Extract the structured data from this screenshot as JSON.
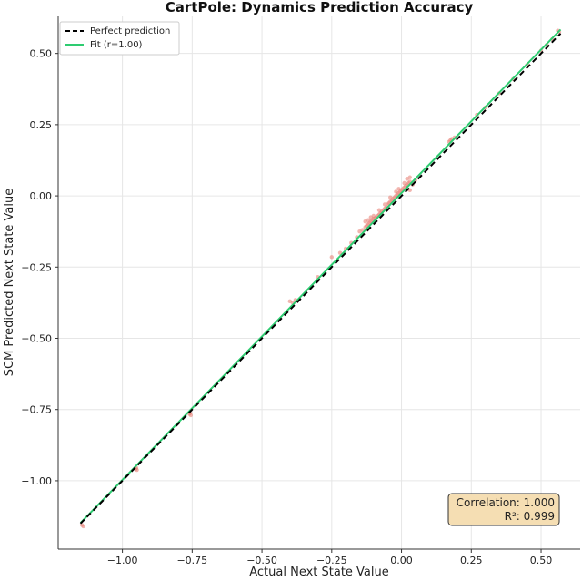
{
  "chart_data": {
    "type": "scatter",
    "title": "CartPole: Dynamics Prediction Accuracy",
    "xlabel": "Actual Next State Value",
    "ylabel": "SCM Predicted Next State Value",
    "xlim": [
      -1.23,
      0.64
    ],
    "ylim": [
      -1.24,
      0.63
    ],
    "xticks": [
      -1.0,
      -0.75,
      -0.5,
      -0.25,
      0.0,
      0.25,
      0.5
    ],
    "yticks": [
      -1.0,
      -0.75,
      -0.5,
      -0.25,
      0.0,
      0.25,
      0.5
    ],
    "tick_labels": [
      "−1.00",
      "−0.75",
      "−0.50",
      "−0.25",
      "0.00",
      "0.25",
      "0.50"
    ],
    "grid": true,
    "legend": {
      "position": "top-left",
      "entries": [
        {
          "label": "Perfect prediction",
          "style": "dashed",
          "color": "#000000"
        },
        {
          "label": "Fit (r=1.00)",
          "style": "solid",
          "color": "#2ecc71"
        }
      ]
    },
    "stats_box": {
      "position": "bottom-right",
      "line1": "Correlation: 1.000",
      "line2": "R²: 0.999"
    },
    "perfect_line": {
      "x": [
        -1.15,
        0.57
      ],
      "y": [
        -1.15,
        0.57
      ]
    },
    "fit_line": {
      "x": [
        -1.15,
        0.57
      ],
      "y": [
        -1.148,
        0.584
      ]
    },
    "point_color": "#e8847a",
    "points": [
      [
        -1.14,
        -1.16
      ],
      [
        -1.145,
        -1.155
      ],
      [
        -0.95,
        -0.955
      ],
      [
        -0.948,
        -0.962
      ],
      [
        -0.952,
        -0.958
      ],
      [
        -0.76,
        -0.765
      ],
      [
        -0.755,
        -0.77
      ],
      [
        -0.758,
        -0.762
      ],
      [
        -0.4,
        -0.37
      ],
      [
        -0.39,
        -0.375
      ],
      [
        -0.38,
        -0.365
      ],
      [
        -0.3,
        -0.285
      ],
      [
        -0.25,
        -0.215
      ],
      [
        -0.22,
        -0.2
      ],
      [
        -0.2,
        -0.185
      ],
      [
        -0.18,
        -0.165
      ],
      [
        -0.16,
        -0.145
      ],
      [
        -0.15,
        -0.125
      ],
      [
        -0.14,
        -0.12
      ],
      [
        -0.13,
        -0.11
      ],
      [
        -0.125,
        -0.105
      ],
      [
        -0.12,
        -0.1
      ],
      [
        -0.115,
        -0.095
      ],
      [
        -0.11,
        -0.09
      ],
      [
        -0.105,
        -0.085
      ],
      [
        -0.1,
        -0.08
      ],
      [
        -0.095,
        -0.078
      ],
      [
        -0.09,
        -0.075
      ],
      [
        -0.085,
        -0.07
      ],
      [
        -0.08,
        -0.065
      ],
      [
        -0.075,
        -0.06
      ],
      [
        -0.07,
        -0.055
      ],
      [
        -0.065,
        -0.05
      ],
      [
        -0.06,
        -0.045
      ],
      [
        -0.055,
        -0.04
      ],
      [
        -0.05,
        -0.03
      ],
      [
        -0.045,
        -0.025
      ],
      [
        -0.04,
        -0.02
      ],
      [
        -0.035,
        -0.015
      ],
      [
        -0.03,
        -0.01
      ],
      [
        -0.025,
        -0.005
      ],
      [
        -0.02,
        0.0
      ],
      [
        -0.015,
        0.005
      ],
      [
        -0.01,
        0.01
      ],
      [
        -0.005,
        0.015
      ],
      [
        0.0,
        0.02
      ],
      [
        0.005,
        0.025
      ],
      [
        0.01,
        0.03
      ],
      [
        0.015,
        0.035
      ],
      [
        0.02,
        0.04
      ],
      [
        0.025,
        0.045
      ],
      [
        0.03,
        0.05
      ],
      [
        0.02,
        0.06
      ],
      [
        0.03,
        0.065
      ],
      [
        0.01,
        0.045
      ],
      [
        -0.01,
        0.025
      ],
      [
        -0.02,
        0.015
      ],
      [
        -0.04,
        -0.005
      ],
      [
        -0.06,
        -0.03
      ],
      [
        -0.08,
        -0.05
      ],
      [
        -0.12,
        -0.085
      ],
      [
        -0.13,
        -0.09
      ],
      [
        -0.1,
        -0.07
      ],
      [
        -0.11,
        -0.075
      ],
      [
        0.03,
        0.02
      ],
      [
        0.04,
        0.04
      ],
      [
        0.05,
        0.055
      ],
      [
        0.17,
        0.19
      ],
      [
        0.175,
        0.195
      ],
      [
        0.18,
        0.2
      ],
      [
        0.19,
        0.205
      ],
      [
        0.27,
        0.285
      ],
      [
        0.3,
        0.31
      ],
      [
        0.35,
        0.36
      ],
      [
        0.4,
        0.41
      ],
      [
        0.45,
        0.46
      ],
      [
        0.5,
        0.51
      ],
      [
        0.52,
        0.53
      ],
      [
        0.54,
        0.55
      ],
      [
        0.56,
        0.58
      ],
      [
        0.565,
        0.575
      ]
    ]
  }
}
